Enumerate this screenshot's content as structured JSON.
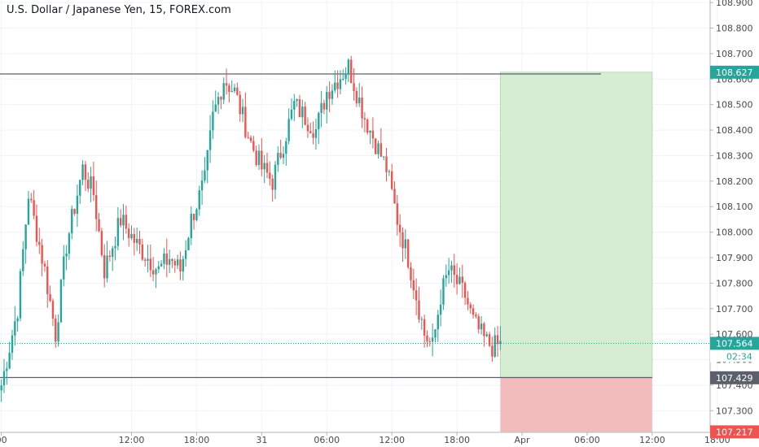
{
  "title": "U.S. Dollar / Japanese Yen, 15, FOREX.com",
  "colors": {
    "up": "#26a69a",
    "down": "#ef5350",
    "grid": "#f0f3fa",
    "axis_text": "#4a4a4a",
    "axis_border": "#b2b5be",
    "level_line": "#5d606b",
    "price_line": "#26a69a",
    "target_zone": "#d6ecd3",
    "target_zone_border": "#b7dcb1",
    "stop_zone": "#f2bcbc",
    "target_label_bg": "#26a69a",
    "entry_label_bg": "#5d606b",
    "stop_label_bg": "#ef5350",
    "current_label_bg": "#26a69a",
    "countdown_bg": "#ffffff"
  },
  "axis": {
    "y_ticks": [
      "108.900",
      "108.800",
      "108.700",
      "108.600",
      "108.500",
      "108.400",
      "108.300",
      "108.200",
      "108.100",
      "108.000",
      "107.900",
      "107.800",
      "107.700",
      "107.600",
      "107.500",
      "107.400",
      "107.300"
    ],
    "x_ticks": [
      {
        "label": "00",
        "bar": 0
      },
      {
        "label": "12:00",
        "bar": 48
      },
      {
        "label": "18:00",
        "bar": 72
      },
      {
        "label": "31",
        "bar": 96
      },
      {
        "label": "06:00",
        "bar": 120
      },
      {
        "label": "12:00",
        "bar": 144
      },
      {
        "label": "18:00",
        "bar": 168
      },
      {
        "label": "Apr",
        "bar": 192
      },
      {
        "label": "06:00",
        "bar": 216
      },
      {
        "label": "12:00",
        "bar": 240
      },
      {
        "label": "18:00",
        "bar": 264
      }
    ]
  },
  "labels": {
    "target": "108.627",
    "current": "107.564",
    "countdown": "02:34",
    "entry": "107.429",
    "stop": "107.217"
  },
  "chart_data": {
    "type": "candlestick",
    "interval": "15",
    "y_range": [
      107.215,
      108.91
    ],
    "price_levels": {
      "resistance": 108.62,
      "support": 107.43
    },
    "position": {
      "entry": 107.429,
      "target": 108.627,
      "stop": 107.217,
      "start_bar": 184,
      "end_bar": 240
    },
    "current_price": 107.564,
    "anchors": [
      [
        0,
        107.4
      ],
      [
        6,
        107.7
      ],
      [
        10,
        108.15
      ],
      [
        16,
        107.85
      ],
      [
        20,
        107.6
      ],
      [
        24,
        107.95
      ],
      [
        30,
        108.25
      ],
      [
        34,
        108.15
      ],
      [
        38,
        107.85
      ],
      [
        44,
        108.05
      ],
      [
        50,
        107.95
      ],
      [
        54,
        107.9
      ],
      [
        58,
        107.85
      ],
      [
        62,
        107.9
      ],
      [
        66,
        107.85
      ],
      [
        70,
        108.05
      ],
      [
        75,
        108.2
      ],
      [
        78,
        108.45
      ],
      [
        82,
        108.6
      ],
      [
        86,
        108.55
      ],
      [
        92,
        108.35
      ],
      [
        96,
        108.25
      ],
      [
        100,
        108.2
      ],
      [
        104,
        108.35
      ],
      [
        108,
        108.5
      ],
      [
        112,
        108.45
      ],
      [
        116,
        108.4
      ],
      [
        120,
        108.55
      ],
      [
        124,
        108.6
      ],
      [
        128,
        108.65
      ],
      [
        131,
        108.55
      ],
      [
        134,
        108.45
      ],
      [
        138,
        108.35
      ],
      [
        142,
        108.25
      ],
      [
        146,
        108.05
      ],
      [
        150,
        107.9
      ],
      [
        153,
        107.75
      ],
      [
        156,
        107.6
      ],
      [
        159,
        107.55
      ],
      [
        162,
        107.75
      ],
      [
        165,
        107.85
      ],
      [
        168,
        107.8
      ],
      [
        171,
        107.75
      ],
      [
        174,
        107.65
      ],
      [
        178,
        107.58
      ],
      [
        181,
        107.55
      ],
      [
        184,
        107.56
      ]
    ]
  }
}
